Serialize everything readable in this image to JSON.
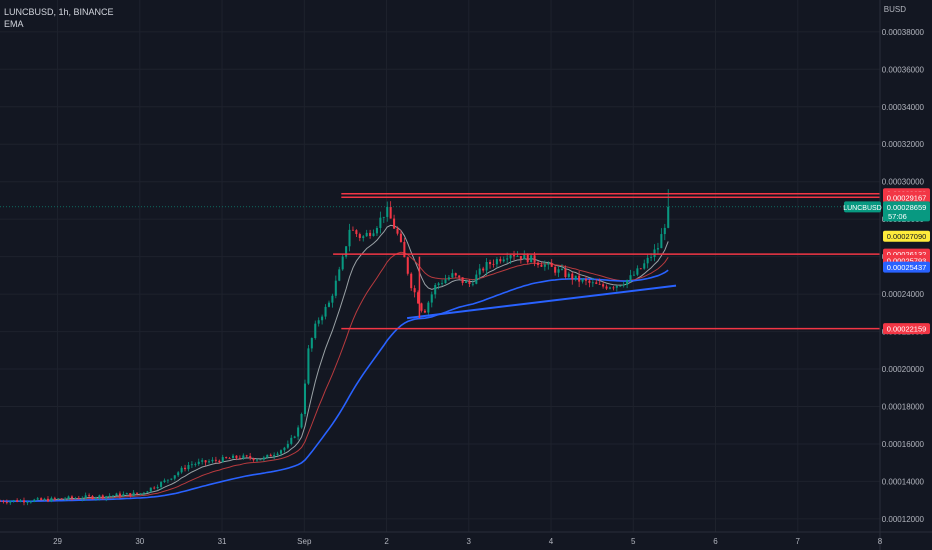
{
  "header": {
    "symbol_line": "LUNCBUSD, 1h, BINANCE",
    "indicator": "EMA",
    "currency": "BUSD"
  },
  "chart_data": {
    "type": "candlestick",
    "y_ticks": [
      "0.00038000",
      "0.00036000",
      "0.00034000",
      "0.00032000",
      "0.00030000",
      "0.00028000",
      "0.00026000",
      "0.00024000",
      "0.00022000",
      "0.00020000",
      "0.00018000",
      "0.00016000",
      "0.00014000",
      "0.00012000"
    ],
    "y_tick_values": [
      0.00038,
      0.00036,
      0.00034,
      0.00032,
      0.0003,
      0.00028,
      0.00026,
      0.00024,
      0.00022,
      0.0002,
      0.00018,
      0.00016,
      0.00014,
      0.00012
    ],
    "x_ticks": [
      "29",
      "30",
      "31",
      "Sep",
      "2",
      "3",
      "4",
      "5",
      "6",
      "7",
      "8"
    ],
    "x_tick_days": [
      29,
      30,
      31,
      32,
      33,
      34,
      35,
      36,
      37,
      38,
      39
    ],
    "ylim": [
      0.000113,
      0.000397
    ],
    "xlim": [
      28.3,
      39.0
    ],
    "price_path": [
      [
        28.3,
        0.0001295
      ],
      [
        28.8,
        0.00013
      ],
      [
        29.5,
        0.000132
      ],
      [
        30.0,
        0.0001335
      ],
      [
        30.3,
        0.00014
      ],
      [
        30.6,
        0.000149
      ],
      [
        30.9,
        0.000151
      ],
      [
        31.2,
        0.000153
      ],
      [
        31.5,
        0.000152
      ],
      [
        31.8,
        0.000159
      ],
      [
        31.95,
        0.00017
      ],
      [
        32.05,
        0.00021
      ],
      [
        32.15,
        0.000225
      ],
      [
        32.3,
        0.000235
      ],
      [
        32.45,
        0.000255
      ],
      [
        32.55,
        0.000275
      ],
      [
        32.7,
        0.00027
      ],
      [
        32.85,
        0.000275
      ],
      [
        33.0,
        0.000285
      ],
      [
        33.15,
        0.00027
      ],
      [
        33.3,
        0.000245
      ],
      [
        33.45,
        0.00023
      ],
      [
        33.6,
        0.000245
      ],
      [
        33.8,
        0.00025
      ],
      [
        34.0,
        0.000245
      ],
      [
        34.2,
        0.000255
      ],
      [
        34.5,
        0.000262
      ],
      [
        34.8,
        0.000258
      ],
      [
        35.1,
        0.000252
      ],
      [
        35.3,
        0.000248
      ],
      [
        35.6,
        0.000244
      ],
      [
        35.8,
        0.000245
      ],
      [
        35.95,
        0.000248
      ],
      [
        36.1,
        0.000254
      ],
      [
        36.3,
        0.000265
      ],
      [
        36.45,
        0.000287
      ]
    ],
    "series": [
      {
        "name": "",
        "color": "#9aa2a6",
        "period": 9
      },
      {
        "name": "",
        "color": "#b83a3e",
        "period": 21
      },
      {
        "name": "",
        "color": "#2962ff",
        "period": 55
      }
    ],
    "horizontal_levels": [
      {
        "label": "0.00029359",
        "value": 0.00029359,
        "color": "#f23645",
        "x_from": 32.45
      },
      {
        "label": "0.00029167",
        "value": 0.00029167,
        "color": "#f23645",
        "x_from": 32.45
      },
      {
        "label": "0.00026132",
        "value": 0.00026132,
        "color": "#f23645",
        "x_from": 32.35
      },
      {
        "label": "0.00022159",
        "value": 0.00022159,
        "color": "#f23645",
        "x_from": 32.45
      }
    ],
    "support_line": {
      "from": [
        33.25,
        0.0002272
      ],
      "to": [
        36.52,
        0.0002445
      ],
      "color": "#2962ff"
    },
    "resistance_drop": {
      "x": 33.4,
      "from": 0.00026,
      "to": 0.0002272
    },
    "price_labels": [
      {
        "text": "0.00029359",
        "value": 0.00029359,
        "bg": "#f23645",
        "fg": "#ffffff"
      },
      {
        "text": "0.00029167",
        "value": 0.00029167,
        "bg": "#f23645",
        "fg": "#ffffff"
      },
      {
        "text": "0.00028659",
        "value": 0.00028659,
        "bg": "#089981",
        "fg": "#ffffff",
        "sub": "57:06"
      },
      {
        "text": "0.00027090",
        "value": 0.0002709,
        "bg": "#ffeb3b",
        "fg": "#131722"
      },
      {
        "text": "0.00026132",
        "value": 0.00026132,
        "bg": "#f23645",
        "fg": "#ffffff"
      },
      {
        "text": "0.00025793",
        "value": 0.00025793,
        "bg": "#f23645",
        "fg": "#ffffff"
      },
      {
        "text": "0.00025437",
        "value": 0.00025437,
        "bg": "#2962ff",
        "fg": "#ffffff"
      },
      {
        "text": "0.00022159",
        "value": 0.00022159,
        "bg": "#f23645",
        "fg": "#ffffff"
      }
    ],
    "current_price_tag": "LUNCBUSD",
    "current_price": 0.00028659,
    "colors": {
      "background": "#131722",
      "grid": "#1e222d",
      "up": "#089981",
      "down": "#f23645",
      "axis_text": "#b2b5be"
    }
  }
}
